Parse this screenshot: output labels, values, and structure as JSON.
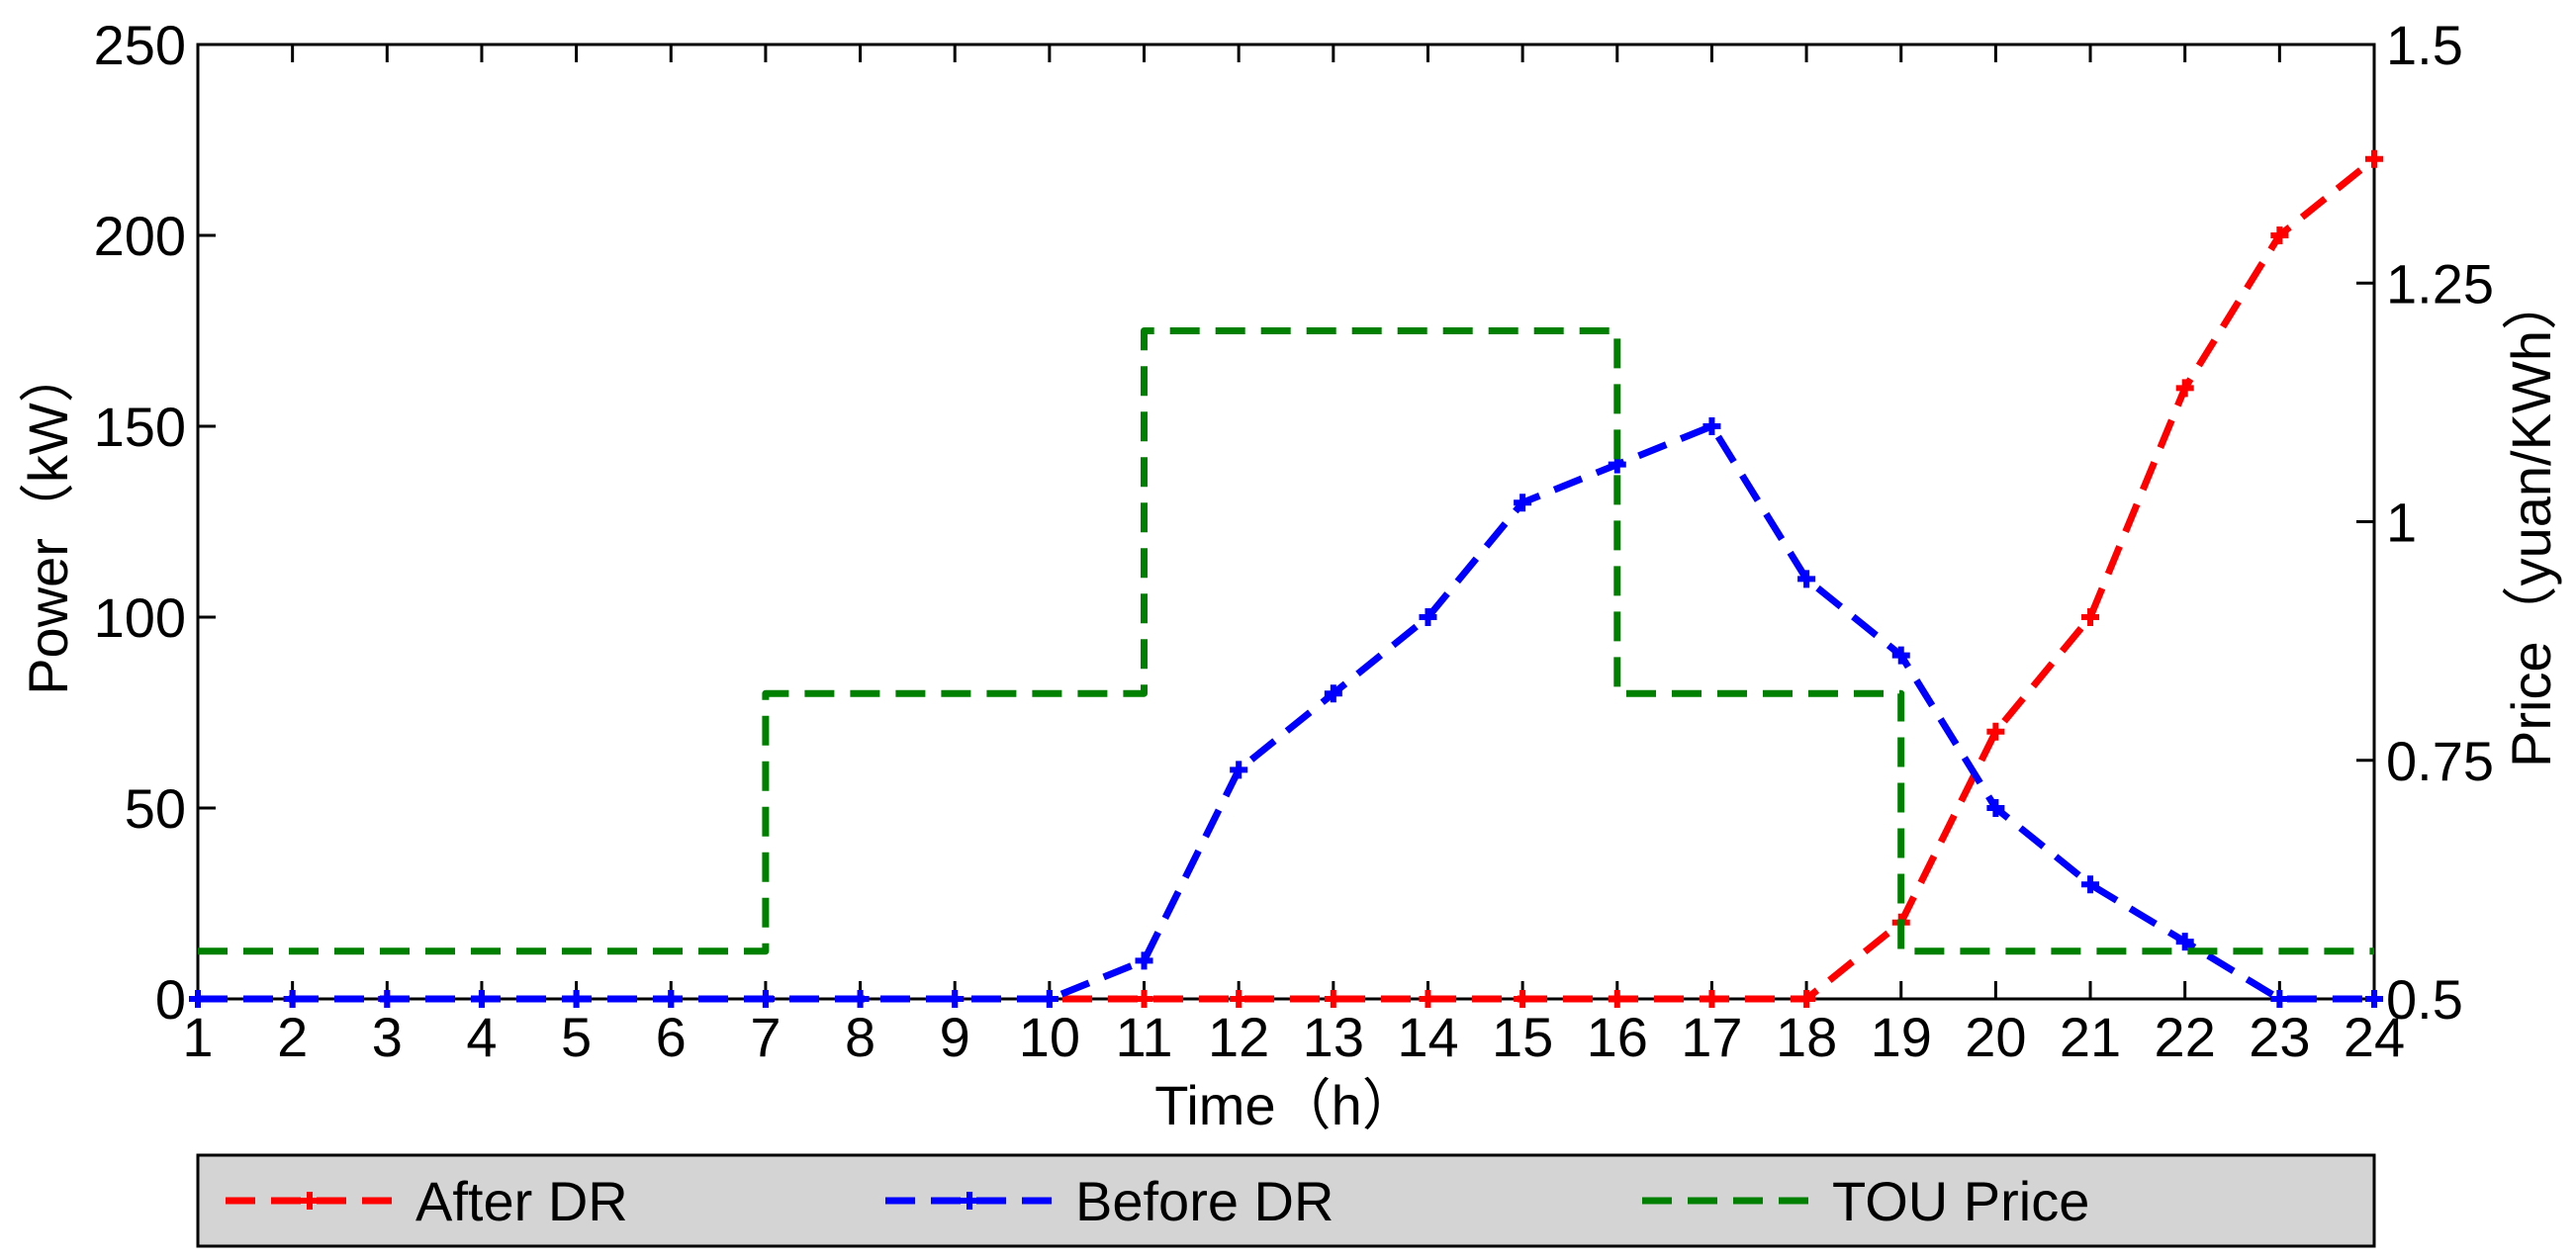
{
  "chart_data": {
    "type": "line",
    "x_axis": {
      "label": "Time（h）",
      "range": [
        1,
        24
      ],
      "ticks": [
        1,
        2,
        3,
        4,
        5,
        6,
        7,
        8,
        9,
        10,
        11,
        12,
        13,
        14,
        15,
        16,
        17,
        18,
        19,
        20,
        21,
        22,
        23,
        24
      ]
    },
    "y_axis_left": {
      "label": "Power（kW）",
      "range": [
        0,
        250
      ],
      "ticks": [
        0,
        50,
        100,
        150,
        200,
        250
      ]
    },
    "y_axis_right": {
      "label": "Price（yuan/KWh）",
      "range": [
        0.5,
        1.5
      ],
      "ticks": [
        0.5,
        0.75,
        1,
        1.25,
        1.5
      ],
      "tick_labels": [
        "0.5",
        "0.75",
        "1",
        "1.25",
        "1.5"
      ]
    },
    "grid": false,
    "legend_position": "bottom",
    "series": [
      {
        "name": "After DR",
        "axis": "left",
        "color": "#ff0000",
        "style": "dashed-with-markers",
        "x": [
          1,
          2,
          3,
          4,
          5,
          6,
          7,
          8,
          9,
          10,
          11,
          12,
          13,
          14,
          15,
          16,
          17,
          18,
          19,
          20,
          21,
          22,
          23,
          24
        ],
        "y": [
          0,
          0,
          0,
          0,
          0,
          0,
          0,
          0,
          0,
          0,
          0,
          0,
          0,
          0,
          0,
          0,
          0,
          0,
          20,
          70,
          100,
          160,
          200,
          220
        ]
      },
      {
        "name": "Before DR",
        "axis": "left",
        "color": "#0000ff",
        "style": "dashed-with-markers",
        "x": [
          1,
          2,
          3,
          4,
          5,
          6,
          7,
          8,
          9,
          10,
          11,
          12,
          13,
          14,
          15,
          16,
          17,
          18,
          19,
          20,
          21,
          22,
          23,
          24
        ],
        "y": [
          0,
          0,
          0,
          0,
          0,
          0,
          0,
          0,
          0,
          0,
          10,
          60,
          80,
          100,
          130,
          140,
          150,
          110,
          90,
          50,
          30,
          15,
          0,
          0
        ]
      },
      {
        "name": "TOU Price",
        "axis": "right",
        "color": "#008000",
        "style": "dashed-step",
        "x": [
          1,
          7,
          7,
          11,
          11,
          16,
          16,
          19,
          19,
          24
        ],
        "y": [
          0.55,
          0.55,
          0.82,
          0.82,
          1.2,
          1.2,
          0.82,
          0.82,
          0.55,
          0.55
        ]
      }
    ]
  }
}
